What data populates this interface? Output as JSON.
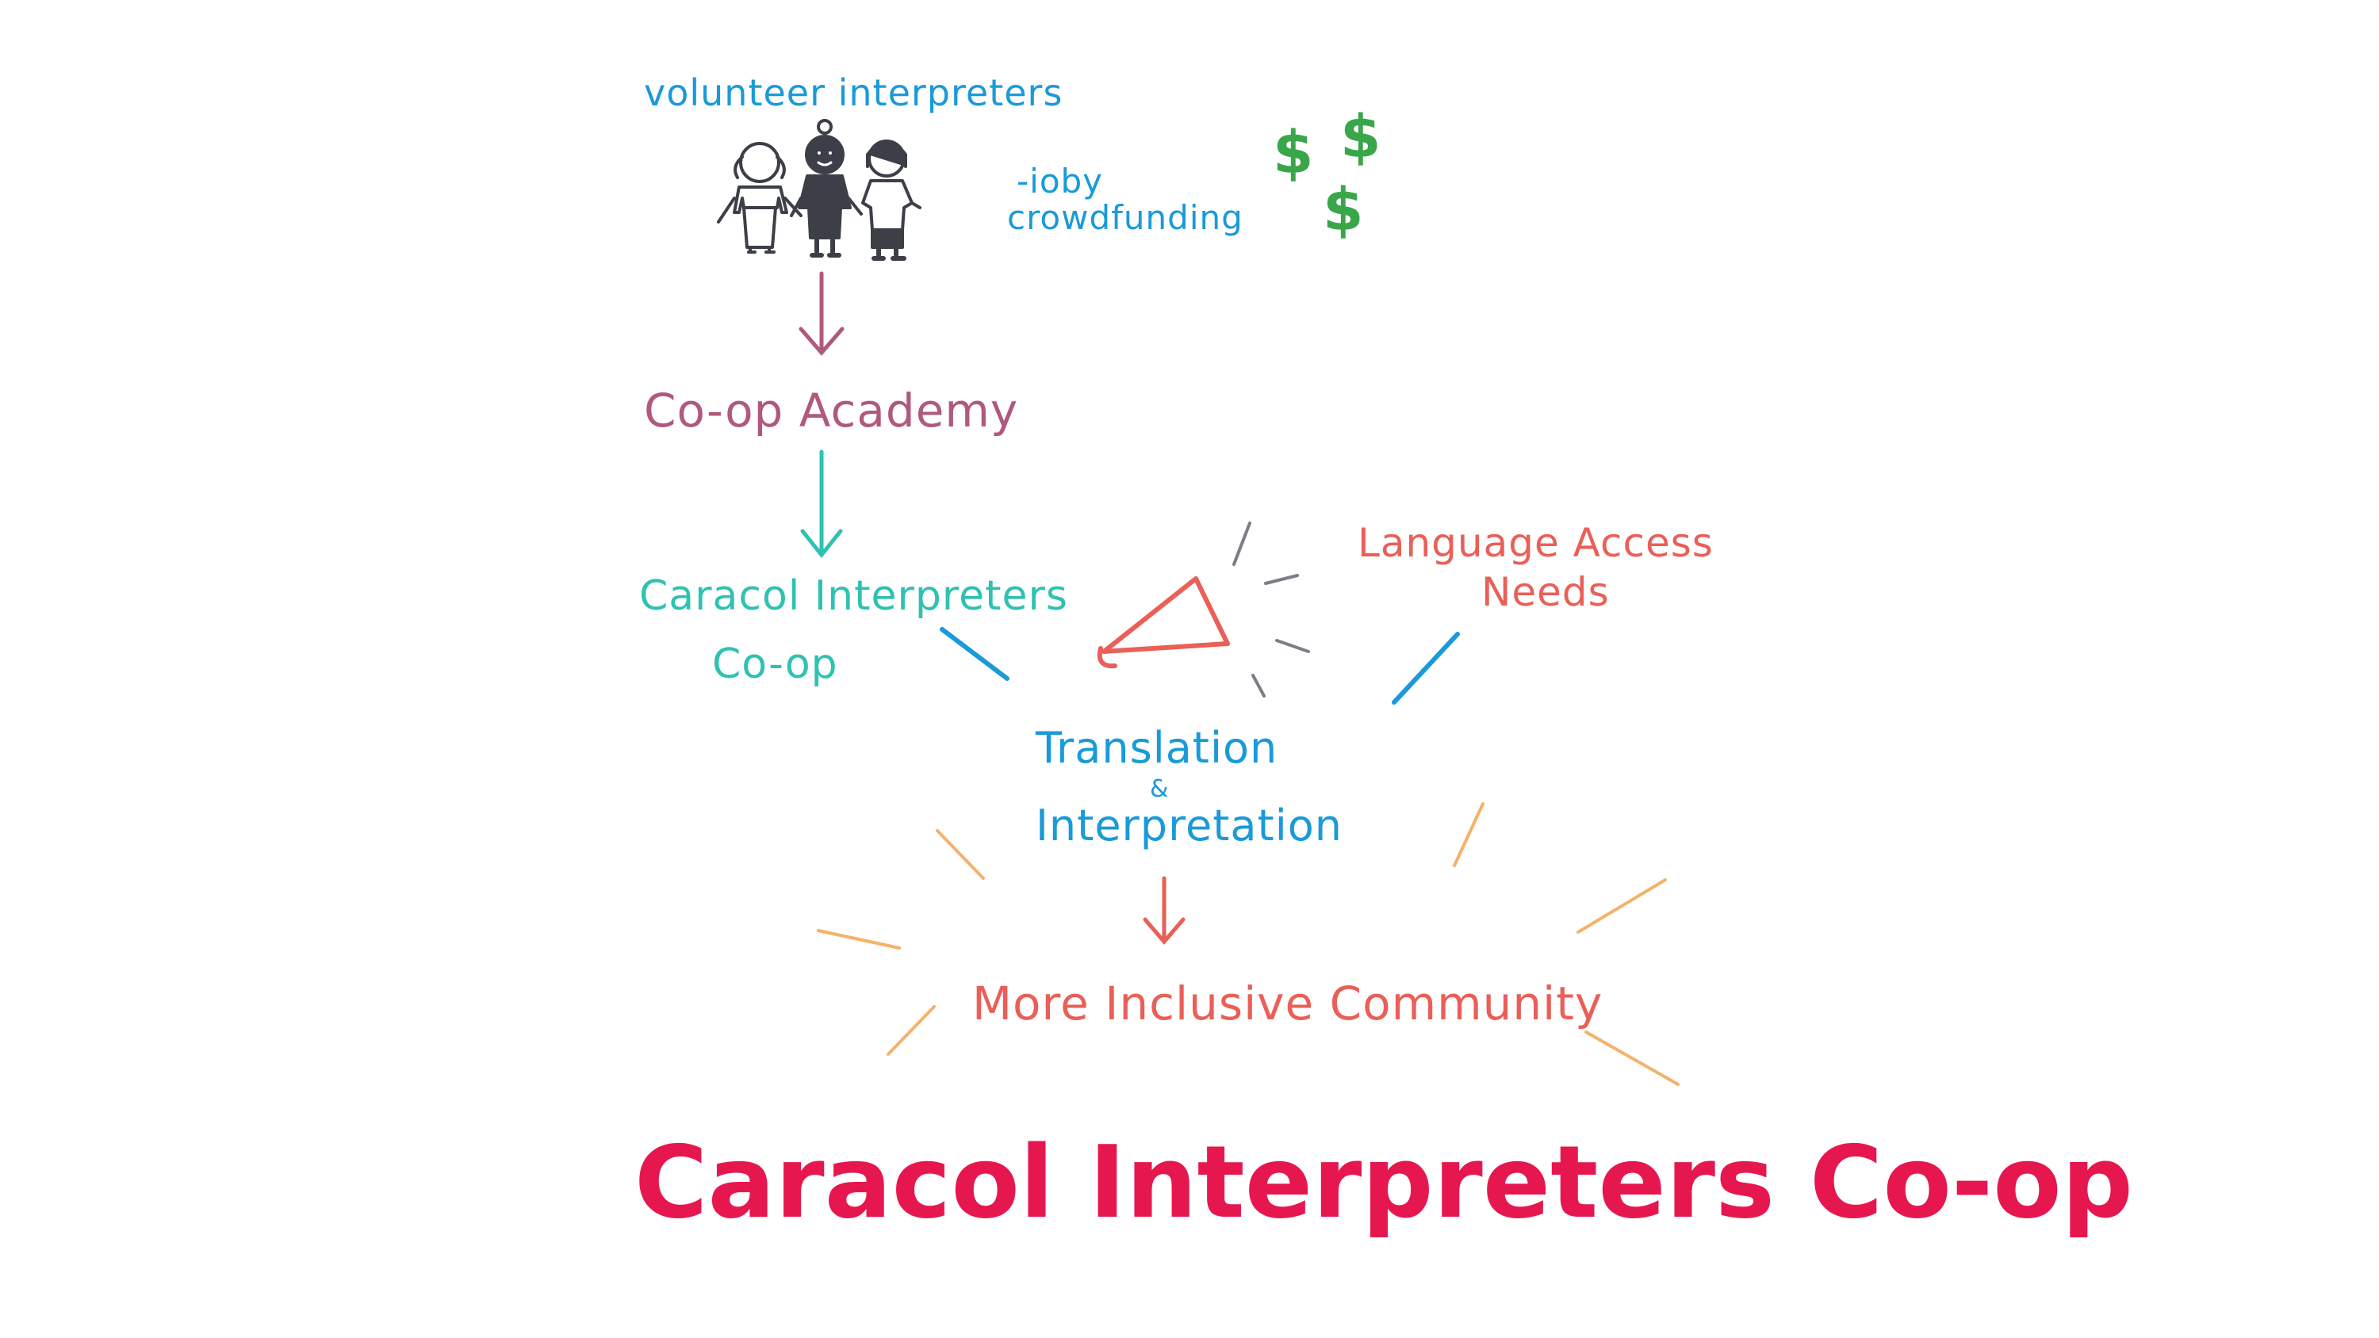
{
  "labels": {
    "volunteers": "volunteer interpreters",
    "ioby": "-ioby",
    "crowdfunding": "crowdfunding",
    "academy": "Co-op Academy",
    "caracol_line1": "Caracol Interpreters",
    "caracol_line2": "Co-op",
    "language_line1": "Language Access",
    "language_line2": "Needs",
    "translation_line1": "Translation",
    "translation_amp": "&",
    "translation_line2": "Interpretation",
    "community": "More Inclusive Community",
    "main_title": "Caracol Interpreters Co-op",
    "dollar": "$"
  },
  "colors": {
    "blue": "#1a9ad8",
    "green": "#3aa64a",
    "plum": "#b0587e",
    "teal": "#2fc1b2",
    "salmon": "#ea5f57",
    "orange": "#f4b26a",
    "pink": "#e6174f",
    "gray": "#7a7f86",
    "ink": "#3c3f47"
  },
  "icons": [
    "people-icon",
    "megaphone-icon",
    "dollar-icon"
  ]
}
